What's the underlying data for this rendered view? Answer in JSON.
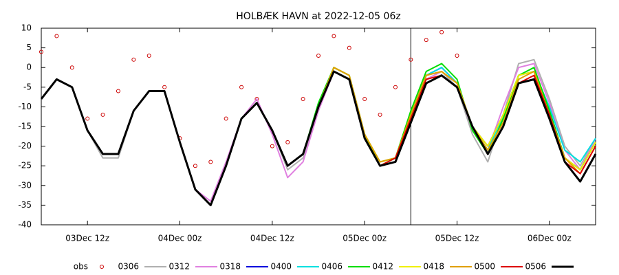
{
  "chart_data": {
    "type": "line",
    "title": "HOLBÆK HAVN at 2022-12-05 06z",
    "x": [
      6,
      8,
      10,
      12,
      14,
      16,
      18,
      20,
      22,
      24,
      26,
      28,
      30,
      32,
      34,
      36,
      38,
      40,
      42,
      44,
      46,
      48,
      50,
      52,
      54,
      56,
      58,
      60,
      62,
      64,
      66,
      68,
      70,
      72,
      74,
      76,
      78
    ],
    "xlim": [
      6,
      78
    ],
    "xticks": [
      {
        "value": 12,
        "label": "03Dec 12z"
      },
      {
        "value": 24,
        "label": "04Dec 00z"
      },
      {
        "value": 36,
        "label": "04Dec 12z"
      },
      {
        "value": 48,
        "label": "05Dec 00z"
      },
      {
        "value": 60,
        "label": "05Dec 12z"
      },
      {
        "value": 72,
        "label": "06Dec 00z"
      }
    ],
    "ylim": [
      -40,
      10
    ],
    "yticks": [
      10,
      5,
      0,
      -5,
      -10,
      -15,
      -20,
      -25,
      -30,
      -35,
      -40
    ],
    "vline": 54,
    "series": [
      {
        "name": "obs",
        "color": "#cc0000",
        "style": "markers",
        "values": [
          4,
          8,
          0,
          -13,
          -12,
          -6,
          2,
          3,
          -5,
          -18,
          -25,
          -24,
          -13,
          -5,
          -8,
          -20,
          -19,
          -8,
          3,
          8,
          5,
          -8,
          -12,
          -5,
          2,
          7,
          9,
          3,
          null,
          null,
          null,
          null,
          null,
          null,
          null,
          null,
          null
        ]
      },
      {
        "name": "0306",
        "color": "#b0b0b0",
        "values": [
          -8,
          -3,
          -5,
          -16,
          -23,
          -23,
          -11,
          -6,
          -6,
          -19,
          -31,
          -35,
          -25,
          -13,
          -9,
          -16,
          -26,
          -23,
          -10,
          -1,
          -3,
          -17,
          -25,
          -24,
          -13,
          -3,
          -1,
          -5,
          -17,
          -24,
          -12,
          1,
          2,
          -8,
          -20,
          -25,
          -18
        ]
      },
      {
        "name": "0312",
        "color": "#e080e0",
        "values": [
          null,
          null,
          null,
          -16,
          -22,
          -22,
          -11,
          -6,
          -6,
          -19,
          -31,
          -34,
          -24,
          -13,
          -8,
          -17,
          -28,
          -24,
          -11,
          -1,
          -3,
          -17,
          -25,
          -24,
          -13,
          -3,
          -1,
          -4,
          -16,
          -21,
          -10,
          0,
          1,
          -9,
          -21,
          -26,
          -18
        ]
      },
      {
        "name": "0318",
        "color": "#0000dd",
        "values": [
          null,
          null,
          null,
          null,
          null,
          null,
          -11,
          -6,
          -6,
          -19,
          -31,
          -35,
          -25,
          -13,
          -9,
          -16,
          -25,
          -22,
          -10,
          0,
          -2,
          -17,
          -25,
          -24,
          -13,
          -2,
          0,
          -4,
          -15,
          -20,
          -12,
          -2,
          -1,
          -11,
          -23,
          -26,
          -19
        ]
      },
      {
        "name": "0400",
        "color": "#00e0e0",
        "values": [
          null,
          null,
          null,
          null,
          null,
          null,
          null,
          null,
          null,
          -19,
          -31,
          -35,
          -25,
          -13,
          -9,
          -16,
          -25,
          -22,
          -10,
          0,
          -2,
          -17,
          -24,
          -23,
          -12,
          -2,
          0,
          -4,
          -15,
          -21,
          -12,
          -2,
          -1,
          -10,
          -21,
          -24,
          -18
        ]
      },
      {
        "name": "0406",
        "color": "#00dd00",
        "values": [
          null,
          null,
          null,
          null,
          null,
          null,
          null,
          null,
          null,
          null,
          null,
          null,
          -25,
          -13,
          -9,
          -16,
          -25,
          -22,
          -9,
          0,
          -2,
          -17,
          -25,
          -23,
          -11,
          -1,
          1,
          -3,
          -16,
          -22,
          -13,
          -2,
          0,
          -11,
          -23,
          -26,
          -19
        ]
      },
      {
        "name": "0412",
        "color": "#f0f000",
        "values": [
          null,
          null,
          null,
          null,
          null,
          null,
          null,
          null,
          null,
          null,
          null,
          null,
          null,
          null,
          null,
          -16,
          -25,
          -22,
          -10,
          0,
          -2,
          -17,
          -24,
          -23,
          -12,
          -2,
          -1,
          -4,
          -15,
          -20,
          -12,
          -2,
          -1,
          -12,
          -23,
          -26,
          -19
        ]
      },
      {
        "name": "0418",
        "color": "#e0a000",
        "values": [
          null,
          null,
          null,
          null,
          null,
          null,
          null,
          null,
          null,
          null,
          null,
          null,
          null,
          null,
          null,
          null,
          null,
          null,
          -10,
          0,
          -2,
          -17,
          -24,
          -23,
          -12,
          -2,
          -1,
          -4,
          -15,
          -21,
          -14,
          -3,
          -1,
          -12,
          -23,
          -27,
          -20
        ]
      },
      {
        "name": "0500",
        "color": "#dd0000",
        "values": [
          null,
          null,
          null,
          null,
          null,
          null,
          null,
          null,
          null,
          null,
          null,
          null,
          null,
          null,
          null,
          null,
          null,
          null,
          null,
          null,
          null,
          -18,
          -25,
          -23,
          -13,
          -3,
          -2,
          -5,
          -15,
          -22,
          -15,
          -4,
          -2,
          -12,
          -24,
          -27,
          -20
        ]
      },
      {
        "name": "0506",
        "color": "#000000",
        "values": [
          -8,
          -3,
          -5,
          -16,
          -22,
          -22,
          -11,
          -6,
          -6,
          -19,
          -31,
          -35,
          -25,
          -13,
          -9,
          -16,
          -25,
          -22,
          -10,
          -1,
          -3,
          -18,
          -25,
          -24,
          -14,
          -4,
          -2,
          -5,
          -15,
          -22,
          -15,
          -4,
          -3,
          -13,
          -24,
          -29,
          -22
        ]
      }
    ]
  }
}
